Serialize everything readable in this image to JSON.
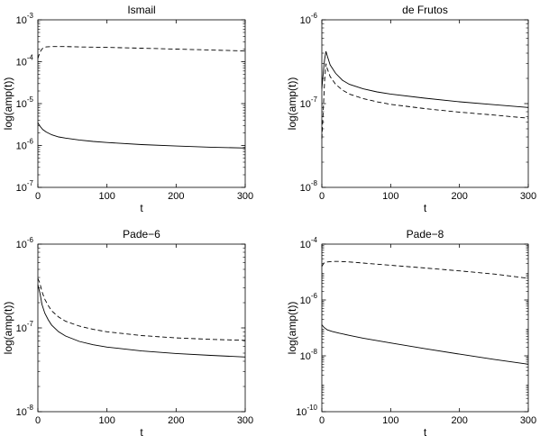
{
  "chart_data": [
    {
      "type": "line",
      "title": "Ismail",
      "xlabel": "t",
      "ylabel": "log(amp(t))",
      "xlim": [
        0,
        300
      ],
      "ylim": [
        1e-07,
        0.001
      ],
      "yscale": "log",
      "x_ticks": [
        "0",
        "100",
        "200",
        "300"
      ],
      "y_ticks": [
        {
          "value": 1e-07,
          "base": "10",
          "exp": "-7"
        },
        {
          "value": 1e-06,
          "base": "10",
          "exp": "-6"
        },
        {
          "value": 1e-05,
          "base": "10",
          "exp": "-5"
        },
        {
          "value": 0.0001,
          "base": "10",
          "exp": "-4"
        },
        {
          "value": 0.001,
          "base": "10",
          "exp": "-3"
        }
      ],
      "series": [
        {
          "style": "dashed",
          "x": [
            0,
            3,
            7,
            12,
            20,
            40,
            60,
            100,
            150,
            200,
            250,
            300
          ],
          "y": [
            0.00012,
            0.00017,
            0.00021,
            0.000225,
            0.00023,
            0.00023,
            0.000225,
            0.00022,
            0.00021,
            0.0002,
            0.00019,
            0.00018
          ]
        },
        {
          "style": "solid",
          "x": [
            0,
            3,
            7,
            12,
            20,
            30,
            40,
            60,
            80,
            100,
            150,
            200,
            250,
            300
          ],
          "y": [
            3.5e-06,
            2.9e-06,
            2.4e-06,
            2.1e-06,
            1.8e-06,
            1.6e-06,
            1.5e-06,
            1.35e-06,
            1.25e-06,
            1.18e-06,
            1.05e-06,
            9.7e-07,
            9.1e-07,
            8.7e-07
          ]
        }
      ]
    },
    {
      "type": "line",
      "title": "de Frutos",
      "xlabel": "t",
      "ylabel": "log(amp(t))",
      "xlim": [
        0,
        300
      ],
      "ylim": [
        1e-08,
        1e-06
      ],
      "yscale": "log",
      "x_ticks": [
        "0",
        "100",
        "200",
        "300"
      ],
      "y_ticks": [
        {
          "value": 1e-08,
          "base": "10",
          "exp": "-8"
        },
        {
          "value": 1e-07,
          "base": "10",
          "exp": "-7"
        },
        {
          "value": 1e-06,
          "base": "10",
          "exp": "-6"
        }
      ],
      "series": [
        {
          "style": "solid",
          "x": [
            0,
            2,
            4,
            6,
            8,
            12,
            20,
            30,
            40,
            60,
            80,
            100,
            150,
            200,
            250,
            300
          ],
          "y": [
            1.5e-07,
            2.3e-07,
            3.4e-07,
            4.2e-07,
            3.7e-07,
            2.9e-07,
            2.3e-07,
            1.9e-07,
            1.7e-07,
            1.5e-07,
            1.38e-07,
            1.3e-07,
            1.16e-07,
            1.05e-07,
            9.7e-08,
            9e-08
          ]
        },
        {
          "style": "dashed",
          "x": [
            0,
            2,
            4,
            6,
            8,
            12,
            20,
            30,
            40,
            60,
            80,
            100,
            150,
            200,
            250,
            300
          ],
          "y": [
            3.8e-08,
            8e-08,
            1.9e-07,
            3e-07,
            2.6e-07,
            2.1e-07,
            1.7e-07,
            1.45e-07,
            1.3e-07,
            1.15e-07,
            1.05e-07,
            9.8e-08,
            8.7e-08,
            7.9e-08,
            7.3e-08,
            6.7e-08
          ]
        }
      ]
    },
    {
      "type": "line",
      "title": "Pade−6",
      "xlabel": "t",
      "ylabel": "log(amp(t))",
      "xlim": [
        0,
        300
      ],
      "ylim": [
        1e-08,
        1e-06
      ],
      "yscale": "log",
      "x_ticks": [
        "0",
        "100",
        "200",
        "300"
      ],
      "y_ticks": [
        {
          "value": 1e-08,
          "base": "10",
          "exp": "-8"
        },
        {
          "value": 1e-07,
          "base": "10",
          "exp": "-7"
        },
        {
          "value": 1e-06,
          "base": "10",
          "exp": "-6"
        }
      ],
      "series": [
        {
          "style": "dashed",
          "x": [
            0,
            3,
            6,
            10,
            15,
            20,
            30,
            40,
            60,
            80,
            100,
            150,
            200,
            250,
            300
          ],
          "y": [
            3.9e-07,
            3.4e-07,
            2.7e-07,
            2.2e-07,
            1.85e-07,
            1.6e-07,
            1.35e-07,
            1.2e-07,
            1.05e-07,
            9.6e-08,
            9e-08,
            8.1e-08,
            7.6e-08,
            7.3e-08,
            7.1e-08
          ]
        },
        {
          "style": "solid",
          "x": [
            0,
            3,
            6,
            10,
            15,
            20,
            30,
            40,
            60,
            80,
            100,
            150,
            200,
            250,
            300
          ],
          "y": [
            3.3e-07,
            2.6e-07,
            1.9e-07,
            1.5e-07,
            1.25e-07,
            1.08e-07,
            9e-08,
            8e-08,
            6.9e-08,
            6.3e-08,
            5.9e-08,
            5.3e-08,
            4.95e-08,
            4.7e-08,
            4.5e-08
          ]
        }
      ]
    },
    {
      "type": "line",
      "title": "Pade−8",
      "xlabel": "t",
      "ylabel": "log(amp(t))",
      "xlim": [
        0,
        300
      ],
      "ylim": [
        1e-10,
        0.0001
      ],
      "yscale": "log",
      "x_ticks": [
        "0",
        "100",
        "200",
        "300"
      ],
      "y_ticks": [
        {
          "value": 1e-10,
          "base": "10",
          "exp": "-10"
        },
        {
          "value": 1e-08,
          "base": "10",
          "exp": "-8"
        },
        {
          "value": 1e-06,
          "base": "10",
          "exp": "-6"
        },
        {
          "value": 0.0001,
          "base": "10",
          "exp": "-4"
        }
      ],
      "series": [
        {
          "style": "dashed",
          "x": [
            0,
            3,
            8,
            15,
            25,
            40,
            60,
            100,
            150,
            200,
            250,
            300
          ],
          "y": [
            1.6e-05,
            2.1e-05,
            2.3e-05,
            2.4e-05,
            2.4e-05,
            2.3e-05,
            2.1e-05,
            1.75e-05,
            1.4e-05,
            1.1e-05,
            8.5e-06,
            6e-06
          ]
        },
        {
          "style": "solid",
          "x": [
            0,
            3,
            8,
            15,
            25,
            40,
            60,
            100,
            150,
            200,
            250,
            300
          ],
          "y": [
            1.3e-07,
            1.05e-07,
            8.5e-08,
            7.5e-08,
            6.5e-08,
            5.4e-08,
            4.3e-08,
            2.9e-08,
            1.8e-08,
            1.15e-08,
            7.5e-09,
            5e-09
          ]
        }
      ]
    }
  ]
}
